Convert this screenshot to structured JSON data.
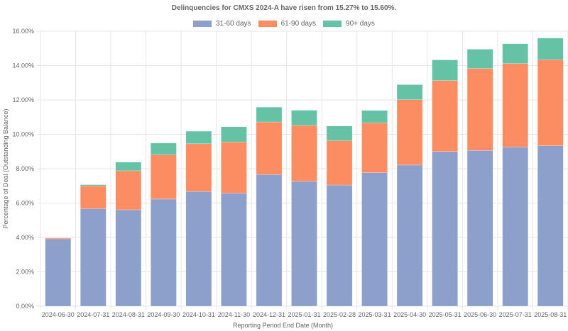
{
  "chart_data": {
    "type": "bar",
    "stacked": true,
    "title": "Delinquencies for CMXS 2024-A have risen from 15.27% to 15.60%.",
    "xlabel": "Reporting Period End Date (Month)",
    "ylabel": "Percentage of Deal (Outstanding Balance)",
    "ylim": [
      0,
      16
    ],
    "yticks": [
      "0.00%",
      "2.00%",
      "4.00%",
      "6.00%",
      "8.00%",
      "10.00%",
      "12.00%",
      "14.00%",
      "16.00%"
    ],
    "ytick_values": [
      0,
      2,
      4,
      6,
      8,
      10,
      12,
      14,
      16
    ],
    "grid": true,
    "legend_position": "top-center",
    "categories": [
      "2024-06-30",
      "2024-07-31",
      "2024-08-31",
      "2024-09-30",
      "2024-10-31",
      "2024-11-30",
      "2024-12-31",
      "2025-01-31",
      "2025-02-28",
      "2025-03-31",
      "2025-04-30",
      "2025-05-31",
      "2025-06-30",
      "2025-07-31",
      "2025-08-31"
    ],
    "series": [
      {
        "name": "31-60 days",
        "color": "#8da0cb",
        "values": [
          3.92,
          5.67,
          5.61,
          6.23,
          6.67,
          6.58,
          7.66,
          7.26,
          7.05,
          7.77,
          8.21,
          9.0,
          9.06,
          9.26,
          9.33
        ]
      },
      {
        "name": "61-90 days",
        "color": "#fc8d62",
        "values": [
          0.05,
          1.33,
          2.27,
          2.58,
          2.78,
          2.97,
          3.06,
          3.26,
          2.58,
          2.9,
          3.8,
          4.13,
          4.77,
          4.86,
          5.01
        ]
      },
      {
        "name": "90+ days",
        "color": "#66c2a5",
        "values": [
          0.0,
          0.07,
          0.5,
          0.68,
          0.73,
          0.89,
          0.86,
          0.88,
          0.85,
          0.72,
          0.88,
          1.2,
          1.12,
          1.15,
          1.26
        ]
      }
    ]
  }
}
